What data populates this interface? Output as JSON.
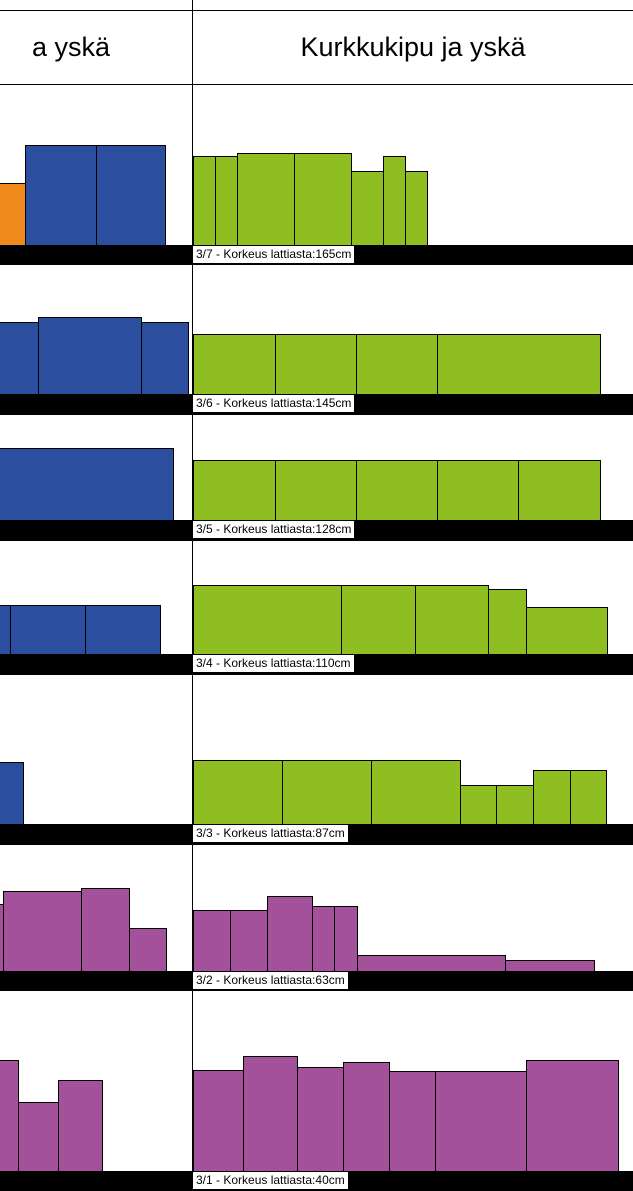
{
  "columns": {
    "left": {
      "title": "a yskä"
    },
    "right": {
      "title": "Kurkkukipu ja yskä"
    }
  },
  "colors": {
    "orange": "#f08a1d",
    "blue": "#2b4f9e",
    "green": "#8fbe22",
    "purple": "#a4519b",
    "shelf": "#000000",
    "label_bg": "#ffffff"
  },
  "shelves": [
    {
      "label": "3/7 - Korkeus lattiasta:165cm"
    },
    {
      "label": "3/6 - Korkeus lattiasta:145cm"
    },
    {
      "label": "3/5 - Korkeus lattiasta:128cm"
    },
    {
      "label": "3/4 - Korkeus lattiasta:110cm"
    },
    {
      "label": "3/3 - Korkeus lattiasta:87cm"
    },
    {
      "label": "3/2 - Korkeus lattiasta:63cm"
    },
    {
      "label": "3/1 - Korkeus lattiasta:40cm"
    }
  ]
}
